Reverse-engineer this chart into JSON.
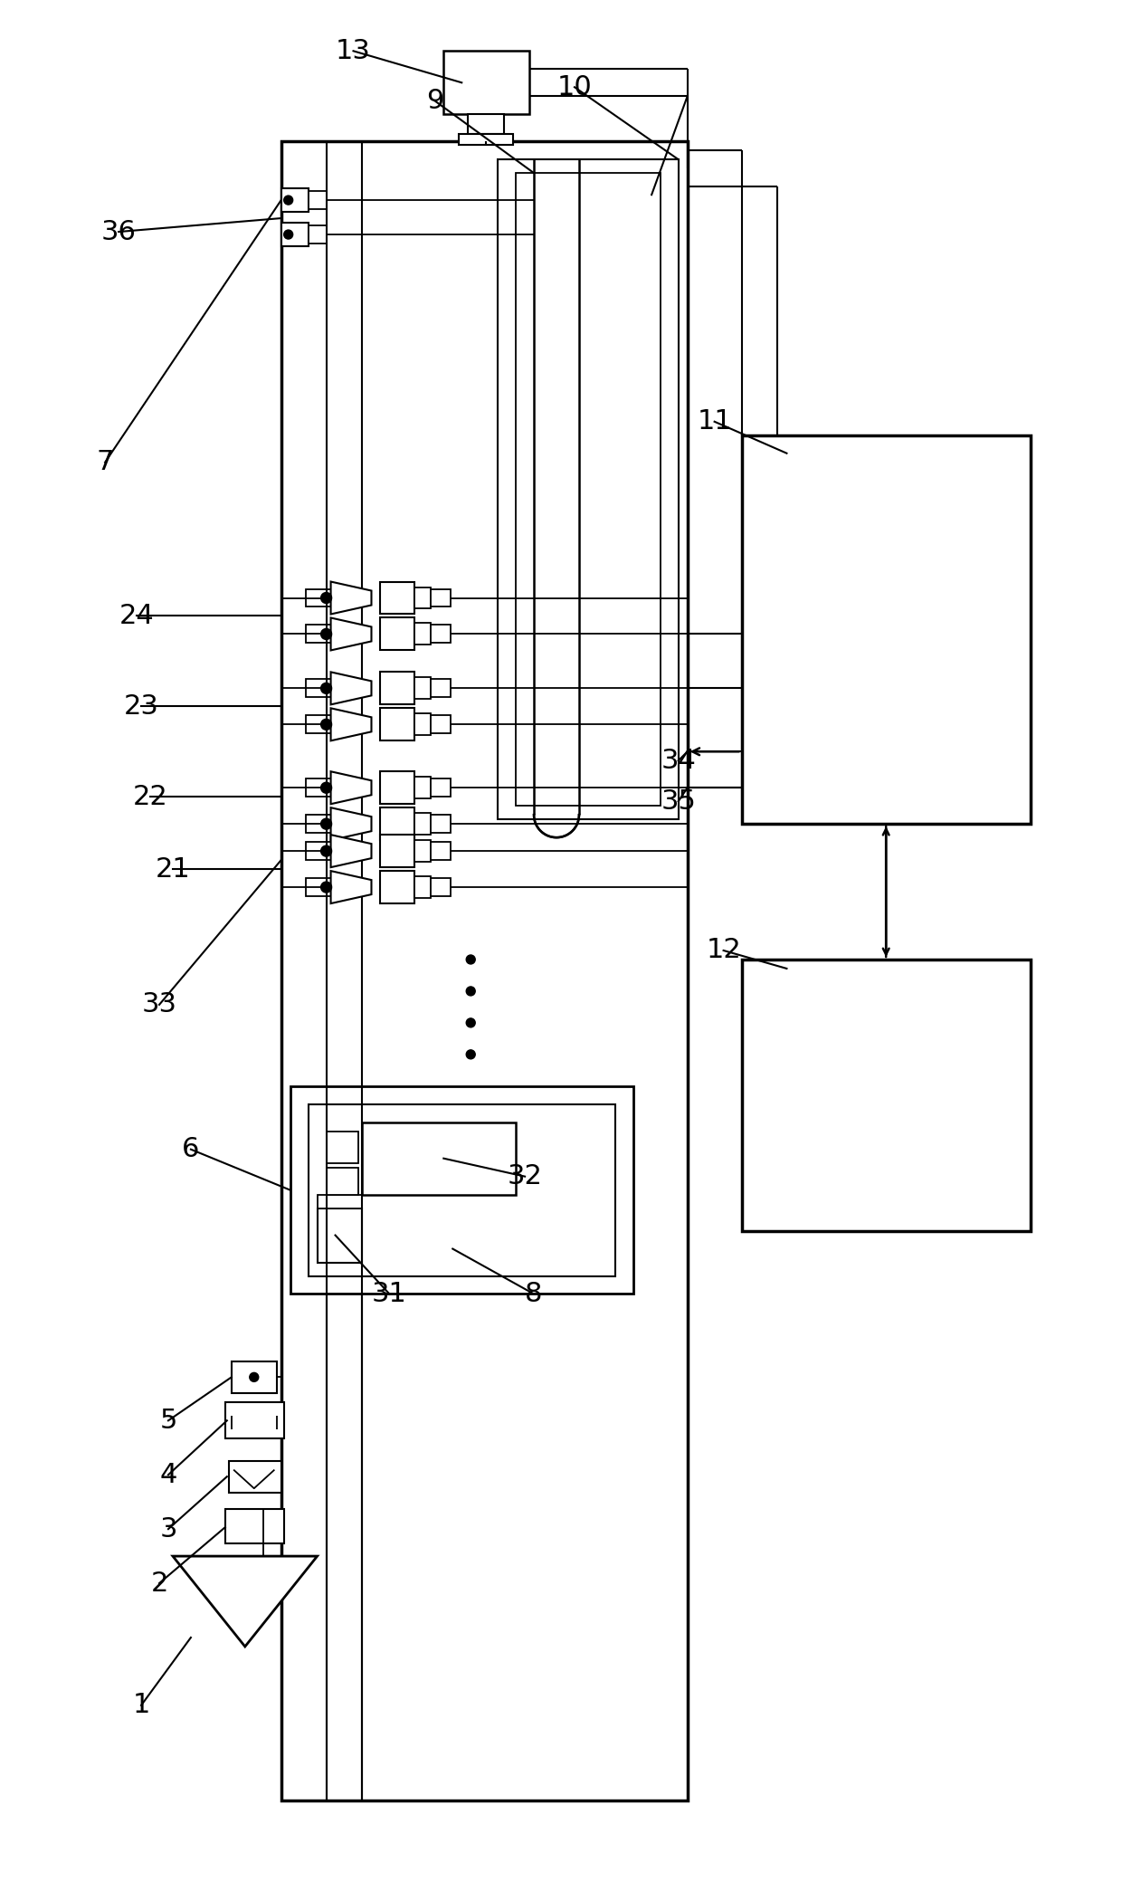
{
  "bg_color": "#ffffff",
  "line_color": "#000000",
  "fig_width": 12.4,
  "fig_height": 20.89
}
